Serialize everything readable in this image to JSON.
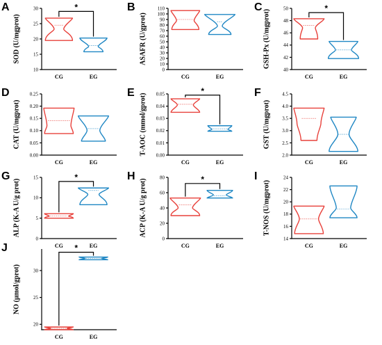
{
  "colors": {
    "CG": "#e8403a",
    "EG": "#1f87c4"
  },
  "chart_data": [
    {
      "panel": "A",
      "type": "violin",
      "ylabel": "SOD (U/mgprot)",
      "ylim": [
        10,
        30
      ],
      "yticks": [
        "10",
        "15",
        "20",
        "25",
        "30"
      ],
      "categories": [
        "CG",
        "EG"
      ],
      "groups": [
        {
          "name": "CG",
          "min": 19.5,
          "q1": 21.5,
          "median": 24.5,
          "q3": 26.3,
          "max": 26.8,
          "neck": 23.2,
          "w": [
            0.85,
            0.3,
            0.85
          ]
        },
        {
          "name": "EG",
          "min": 15.8,
          "q1": 16.8,
          "median": 17.8,
          "q3": 19.5,
          "max": 20.3,
          "neck": 17.5,
          "w": [
            0.6,
            0.3,
            0.85
          ]
        }
      ],
      "significance": {
        "label": "*",
        "from": "CG",
        "to": "EG",
        "y": 29.0
      }
    },
    {
      "panel": "B",
      "type": "violin",
      "ylabel": "ASAFR (U/gprot)",
      "ylim": [
        0,
        110
      ],
      "yticks": [
        "0",
        "10",
        "20",
        "30",
        "40",
        "50",
        "60",
        "70",
        "80",
        "90",
        "100",
        "110"
      ],
      "categories": [
        "CG",
        "EG"
      ],
      "groups": [
        {
          "name": "CG",
          "min": 72,
          "q1": 80,
          "median": 90,
          "q3": 103,
          "max": 106,
          "neck": 88,
          "w": [
            0.85,
            0.55,
            0.9
          ]
        },
        {
          "name": "EG",
          "min": 63,
          "q1": 70,
          "median": 86,
          "q3": 96,
          "max": 99,
          "neck": 78,
          "w": [
            0.7,
            0.15,
            0.95
          ]
        }
      ]
    },
    {
      "panel": "C",
      "type": "violin",
      "ylabel": "GSH-Px (U/mgprot)",
      "ylim": [
        40,
        50
      ],
      "yticks": [
        "40",
        "42",
        "44",
        "46",
        "48",
        "50"
      ],
      "categories": [
        "CG",
        "EG"
      ],
      "groups": [
        {
          "name": "CG",
          "min": 45.0,
          "q1": 46.0,
          "median": 47.2,
          "q3": 48.0,
          "max": 48.3,
          "neck": 46.8,
          "w": [
            0.55,
            0.4,
            0.95
          ]
        },
        {
          "name": "EG",
          "min": 41.8,
          "q1": 42.5,
          "median": 43.2,
          "q3": 44.3,
          "max": 44.6,
          "neck": 43.2,
          "w": [
            0.95,
            0.5,
            0.9
          ]
        }
      ],
      "significance": {
        "label": "*",
        "from": "CG",
        "to": "EG",
        "y": 49.3
      }
    },
    {
      "panel": "D",
      "type": "violin",
      "ylabel": "CAT (U/mgprot)",
      "ylim": [
        0,
        0.25
      ],
      "yticks": [
        "0.00",
        "0.05",
        "0.10",
        "0.15",
        "0.20",
        "0.25"
      ],
      "categories": [
        "CG",
        "EG"
      ],
      "groups": [
        {
          "name": "CG",
          "min": 0.088,
          "q1": 0.1,
          "median": 0.14,
          "q3": 0.18,
          "max": 0.192,
          "neck": 0.12,
          "w": [
            0.9,
            0.75,
            0.95
          ]
        },
        {
          "name": "EG",
          "min": 0.057,
          "q1": 0.07,
          "median": 0.108,
          "q3": 0.15,
          "max": 0.16,
          "neck": 0.1,
          "w": [
            0.75,
            0.4,
            0.95
          ]
        }
      ]
    },
    {
      "panel": "E",
      "type": "violin",
      "ylabel": "T-AOC (mmol/gprot)",
      "ylim": [
        0,
        0.05
      ],
      "yticks": [
        "0.00",
        "0.01",
        "0.02",
        "0.03",
        "0.04",
        "0.05"
      ],
      "categories": [
        "CG",
        "EG"
      ],
      "groups": [
        {
          "name": "CG",
          "min": 0.035,
          "q1": 0.037,
          "median": 0.0415,
          "q3": 0.045,
          "max": 0.046,
          "neck": 0.041,
          "w": [
            0.9,
            0.5,
            0.9
          ]
        },
        {
          "name": "EG",
          "min": 0.0195,
          "q1": 0.02,
          "median": 0.0215,
          "q3": 0.023,
          "max": 0.024,
          "neck": 0.021,
          "w": [
            0.75,
            0.5,
            0.75
          ]
        }
      ],
      "significance": {
        "label": "*",
        "from": "CG",
        "to": "EG",
        "y": 0.049
      }
    },
    {
      "panel": "F",
      "type": "violin",
      "ylabel": "GST (U/mgprot)",
      "ylim": [
        2.0,
        4.5
      ],
      "yticks": [
        "2.0",
        "2.5",
        "3.0",
        "3.5",
        "4.0",
        "4.5"
      ],
      "categories": [
        "CG",
        "EG"
      ],
      "groups": [
        {
          "name": "CG",
          "min": 2.6,
          "q1": 2.9,
          "median": 3.5,
          "q3": 3.85,
          "max": 3.92,
          "neck": 3.3,
          "w": [
            0.5,
            0.75,
            0.95
          ]
        },
        {
          "name": "EG",
          "min": 2.15,
          "q1": 2.4,
          "median": 2.85,
          "q3": 3.45,
          "max": 3.55,
          "neck": 2.85,
          "w": [
            0.9,
            0.35,
            0.8
          ]
        }
      ]
    },
    {
      "panel": "G",
      "type": "violin",
      "ylabel": "ALP (K-A U/g prot)",
      "ylim": [
        0,
        15
      ],
      "yticks": [
        "0",
        "5",
        "10",
        "15"
      ],
      "categories": [
        "CG",
        "EG"
      ],
      "groups": [
        {
          "name": "CG",
          "min": 5.0,
          "q1": 5.3,
          "median": 5.5,
          "q3": 5.9,
          "max": 6.1,
          "neck": 5.5,
          "w": [
            0.9,
            0.6,
            0.9
          ]
        },
        {
          "name": "EG",
          "min": 8.3,
          "q1": 9.5,
          "median": 11.8,
          "q3": 12.1,
          "max": 12.4,
          "neck": 10.8,
          "w": [
            0.85,
            0.35,
            0.95
          ]
        }
      ],
      "significance": {
        "label": "*",
        "from": "CG",
        "to": "EG",
        "y": 14.0
      }
    },
    {
      "panel": "H",
      "type": "violin",
      "ylabel": "ACP (K-A U/g prot)",
      "ylim": [
        0,
        80
      ],
      "yticks": [
        "0",
        "20",
        "40",
        "60",
        "80"
      ],
      "categories": [
        "CG",
        "EG"
      ],
      "groups": [
        {
          "name": "CG",
          "min": 30,
          "q1": 35,
          "median": 44,
          "q3": 51,
          "max": 53,
          "neck": 40,
          "w": [
            0.9,
            0.45,
            0.95
          ]
        },
        {
          "name": "EG",
          "min": 53,
          "q1": 54,
          "median": 56,
          "q3": 61,
          "max": 63,
          "neck": 57,
          "w": [
            0.8,
            0.4,
            0.8
          ]
        }
      ],
      "significance": {
        "label": "*",
        "from": "CG",
        "to": "EG",
        "y": 72
      }
    },
    {
      "panel": "I",
      "type": "violin",
      "ylabel": "T-NOS (U/mgprot)",
      "ylim": [
        14,
        24
      ],
      "yticks": [
        "14",
        "16",
        "18",
        "20",
        "22",
        "24"
      ],
      "categories": [
        "CG",
        "EG"
      ],
      "groups": [
        {
          "name": "CG",
          "min": 14.8,
          "q1": 15.8,
          "median": 17.2,
          "q3": 19.0,
          "max": 19.3,
          "neck": 17.2,
          "w": [
            0.9,
            0.6,
            0.95
          ]
        },
        {
          "name": "EG",
          "min": 17.4,
          "q1": 18.0,
          "median": 18.8,
          "q3": 21.5,
          "max": 22.6,
          "neck": 19.0,
          "w": [
            0.85,
            0.45,
            0.85
          ]
        }
      ]
    },
    {
      "panel": "J",
      "type": "violin",
      "ylabel": "NO (μmol/gprot)",
      "ylim": [
        19,
        34
      ],
      "yticks": [
        "20",
        "25",
        "30"
      ],
      "categories": [
        "CG",
        "EG"
      ],
      "groups": [
        {
          "name": "CG",
          "min": 19.0,
          "q1": 19.1,
          "median": 19.25,
          "q3": 19.4,
          "max": 19.5,
          "neck": 19.25,
          "w": [
            0.9,
            0.5,
            0.9
          ]
        },
        {
          "name": "EG",
          "min": 32.0,
          "q1": 32.1,
          "median": 32.25,
          "q3": 32.4,
          "max": 32.5,
          "neck": 32.25,
          "w": [
            0.9,
            0.5,
            0.9
          ]
        }
      ],
      "significance": {
        "label": "*",
        "from": "CG",
        "to": "EG",
        "y": 33.4
      }
    }
  ]
}
